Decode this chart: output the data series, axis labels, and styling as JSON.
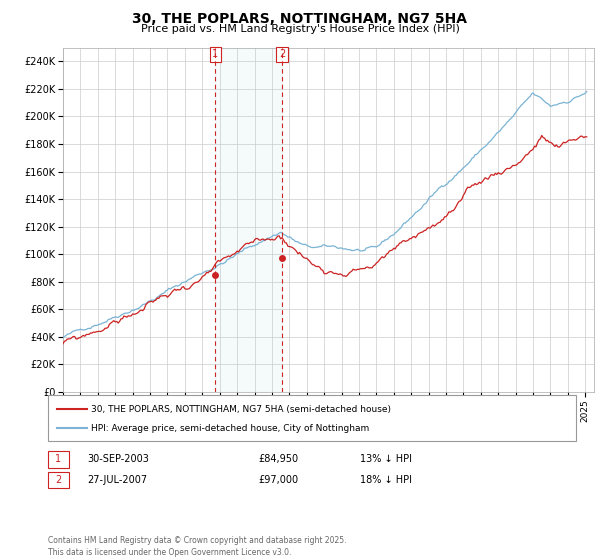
{
  "title": "30, THE POPLARS, NOTTINGHAM, NG7 5HA",
  "subtitle": "Price paid vs. HM Land Registry's House Price Index (HPI)",
  "ylim": [
    0,
    250000
  ],
  "ytick_vals": [
    0,
    20000,
    40000,
    60000,
    80000,
    100000,
    120000,
    140000,
    160000,
    180000,
    200000,
    220000,
    240000
  ],
  "ytick_labels": [
    "£0",
    "£20K",
    "£40K",
    "£60K",
    "£80K",
    "£100K",
    "£120K",
    "£140K",
    "£160K",
    "£180K",
    "£200K",
    "£220K",
    "£240K"
  ],
  "hpi_color": "#7ab3d4",
  "price_color": "#cc2222",
  "xlim_start": 1995,
  "xlim_end": 2025.5,
  "marker1_year": 2003.75,
  "marker2_year": 2007.58,
  "marker1_price": 84950,
  "marker2_price": 97000,
  "annotation1": [
    "1",
    "30-SEP-2003",
    "£84,950",
    "13% ↓ HPI"
  ],
  "annotation2": [
    "2",
    "27-JUL-2007",
    "£97,000",
    "18% ↓ HPI"
  ],
  "legend_line1": "30, THE POPLARS, NOTTINGHAM, NG7 5HA (semi-detached house)",
  "legend_line2": "HPI: Average price, semi-detached house, City of Nottingham",
  "footer": "Contains HM Land Registry data © Crown copyright and database right 2025.\nThis data is licensed under the Open Government Licence v3.0.",
  "background_color": "#ffffff",
  "grid_color": "#cccccc"
}
